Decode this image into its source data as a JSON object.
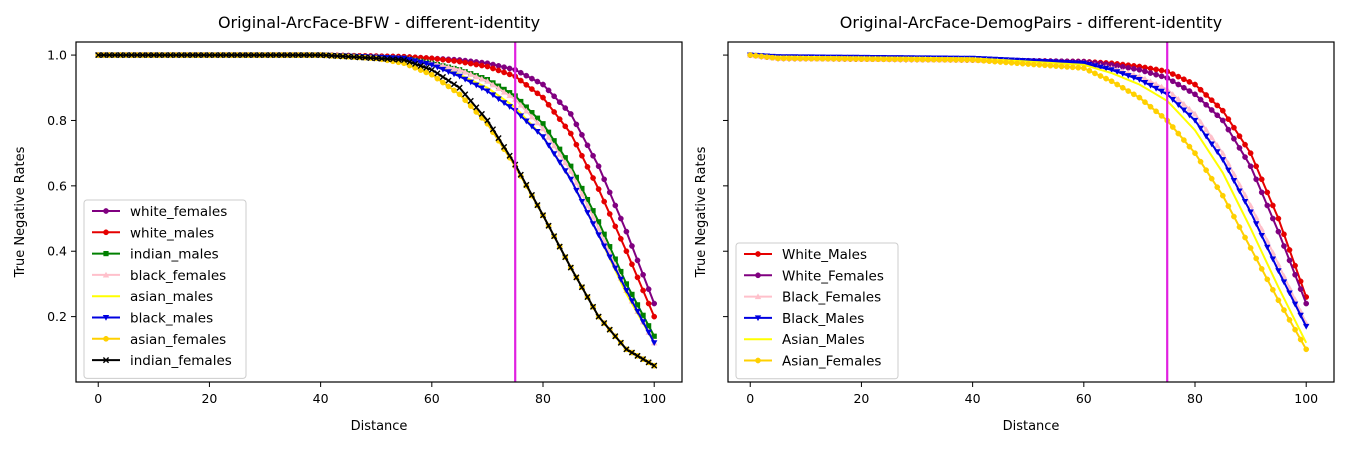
{
  "figure": {
    "charts": [
      {
        "title": "Original-ArcFace-BFW - different-identity",
        "xlabel": "Distance",
        "ylabel": "True Negative Rates",
        "show_yticklabels": true,
        "vline_x": 75,
        "vline_color": "#e020e0",
        "legend_loc": "lower-left",
        "legend_series": [
          "white_females",
          "white_males",
          "indian_males",
          "black_females",
          "asian_males",
          "black_males",
          "asian_females",
          "indian_females"
        ]
      },
      {
        "title": "Original-ArcFace-DemogPairs - different-identity",
        "xlabel": "Distance",
        "ylabel": "True Negative Rates",
        "show_yticklabels": false,
        "vline_x": 75,
        "vline_color": "#e020e0",
        "legend_loc": "lower-left",
        "legend_series": [
          "White_Males",
          "White_Females",
          "Black_Females",
          "Black_Males",
          "Asian_Males",
          "Asian_Females"
        ]
      }
    ]
  },
  "chart_data": [
    {
      "type": "line",
      "title": "Original-ArcFace-BFW - different-identity",
      "xlabel": "Distance",
      "ylabel": "True Negative Rates",
      "xlim": [
        -4,
        105
      ],
      "ylim": [
        0.0,
        1.04
      ],
      "xticks": [
        0,
        20,
        40,
        60,
        80,
        100
      ],
      "yticks": [
        0.2,
        0.4,
        0.6,
        0.8,
        1.0
      ],
      "xtick_labels": [
        "0",
        "20",
        "40",
        "60",
        "80",
        "100"
      ],
      "ytick_labels": [
        "0.2",
        "0.4",
        "0.6",
        "0.8",
        "1.0"
      ],
      "grid": false,
      "legend": "lower-left",
      "vline": {
        "x": 75,
        "color": "#e020e0"
      },
      "series": [
        {
          "name": "white_females",
          "color": "#800080",
          "marker": "circle",
          "points": [
            [
              0,
              1.0
            ],
            [
              40,
              1.0
            ],
            [
              55,
              0.995
            ],
            [
              60,
              0.99
            ],
            [
              65,
              0.985
            ],
            [
              70,
              0.975
            ],
            [
              75,
              0.955
            ],
            [
              80,
              0.91
            ],
            [
              85,
              0.82
            ],
            [
              90,
              0.66
            ],
            [
              95,
              0.46
            ],
            [
              100,
              0.24
            ]
          ]
        },
        {
          "name": "white_males",
          "color": "#e50000",
          "marker": "circle",
          "points": [
            [
              0,
              1.0
            ],
            [
              40,
              1.0
            ],
            [
              55,
              0.995
            ],
            [
              60,
              0.99
            ],
            [
              65,
              0.98
            ],
            [
              70,
              0.965
            ],
            [
              75,
              0.935
            ],
            [
              80,
              0.87
            ],
            [
              85,
              0.76
            ],
            [
              90,
              0.59
            ],
            [
              95,
              0.4
            ],
            [
              100,
              0.2
            ]
          ]
        },
        {
          "name": "indian_males",
          "color": "#008000",
          "marker": "square",
          "points": [
            [
              0,
              1.0
            ],
            [
              40,
              1.0
            ],
            [
              55,
              0.99
            ],
            [
              60,
              0.975
            ],
            [
              65,
              0.955
            ],
            [
              70,
              0.925
            ],
            [
              75,
              0.875
            ],
            [
              80,
              0.79
            ],
            [
              85,
              0.66
            ],
            [
              90,
              0.49
            ],
            [
              95,
              0.3
            ],
            [
              100,
              0.14
            ]
          ]
        },
        {
          "name": "black_females",
          "color": "#ffc0cb",
          "marker": "triangle-up",
          "points": [
            [
              0,
              1.0
            ],
            [
              40,
              1.0
            ],
            [
              55,
              0.99
            ],
            [
              60,
              0.975
            ],
            [
              65,
              0.955
            ],
            [
              70,
              0.92
            ],
            [
              75,
              0.865
            ],
            [
              80,
              0.775
            ],
            [
              85,
              0.645
            ],
            [
              90,
              0.47
            ],
            [
              95,
              0.28
            ],
            [
              100,
              0.12
            ]
          ]
        },
        {
          "name": "asian_males",
          "color": "#ffff00",
          "marker": "none",
          "points": [
            [
              0,
              1.0
            ],
            [
              40,
              1.0
            ],
            [
              55,
              0.99
            ],
            [
              60,
              0.97
            ],
            [
              65,
              0.94
            ],
            [
              70,
              0.9
            ],
            [
              75,
              0.84
            ],
            [
              80,
              0.75
            ],
            [
              85,
              0.62
            ],
            [
              90,
              0.45
            ],
            [
              95,
              0.27
            ],
            [
              100,
              0.12
            ]
          ]
        },
        {
          "name": "black_males",
          "color": "#0000e0",
          "marker": "triangle-down",
          "points": [
            [
              0,
              1.0
            ],
            [
              40,
              1.0
            ],
            [
              55,
              0.99
            ],
            [
              60,
              0.97
            ],
            [
              65,
              0.935
            ],
            [
              70,
              0.89
            ],
            [
              75,
              0.83
            ],
            [
              80,
              0.75
            ],
            [
              85,
              0.62
            ],
            [
              90,
              0.45
            ],
            [
              95,
              0.28
            ],
            [
              100,
              0.12
            ]
          ]
        },
        {
          "name": "asian_females",
          "color": "#ffd000",
          "marker": "circle",
          "points": [
            [
              0,
              1.0
            ],
            [
              40,
              1.0
            ],
            [
              50,
              0.99
            ],
            [
              55,
              0.975
            ],
            [
              60,
              0.94
            ],
            [
              65,
              0.88
            ],
            [
              70,
              0.79
            ],
            [
              75,
              0.66
            ],
            [
              80,
              0.51
            ],
            [
              85,
              0.35
            ],
            [
              90,
              0.2
            ],
            [
              95,
              0.1
            ],
            [
              100,
              0.05
            ]
          ]
        },
        {
          "name": "indian_females",
          "color": "#000000",
          "marker": "x",
          "points": [
            [
              0,
              1.0
            ],
            [
              40,
              1.0
            ],
            [
              50,
              0.99
            ],
            [
              55,
              0.985
            ],
            [
              60,
              0.955
            ],
            [
              65,
              0.9
            ],
            [
              70,
              0.8
            ],
            [
              75,
              0.665
            ],
            [
              80,
              0.51
            ],
            [
              85,
              0.35
            ],
            [
              90,
              0.2
            ],
            [
              95,
              0.1
            ],
            [
              100,
              0.05
            ]
          ]
        }
      ]
    },
    {
      "type": "line",
      "title": "Original-ArcFace-DemogPairs - different-identity",
      "xlabel": "Distance",
      "ylabel": "True Negative Rates",
      "xlim": [
        -4,
        105
      ],
      "ylim": [
        0.0,
        1.04
      ],
      "xticks": [
        0,
        20,
        40,
        60,
        80,
        100
      ],
      "yticks": [
        0.2,
        0.4,
        0.6,
        0.8,
        1.0
      ],
      "xtick_labels": [
        "0",
        "20",
        "40",
        "60",
        "80",
        "100"
      ],
      "ytick_labels": [
        "",
        "",
        "",
        "",
        ""
      ],
      "grid": false,
      "legend": "lower-left",
      "vline": {
        "x": 75,
        "color": "#e020e0"
      },
      "series": [
        {
          "name": "White_Males",
          "color": "#e50000",
          "marker": "circle",
          "points": [
            [
              0,
              1.0
            ],
            [
              5,
              0.99
            ],
            [
              40,
              0.985
            ],
            [
              60,
              0.98
            ],
            [
              65,
              0.975
            ],
            [
              70,
              0.965
            ],
            [
              75,
              0.95
            ],
            [
              80,
              0.91
            ],
            [
              85,
              0.83
            ],
            [
              90,
              0.7
            ],
            [
              95,
              0.5
            ],
            [
              100,
              0.26
            ]
          ]
        },
        {
          "name": "White_Females",
          "color": "#800080",
          "marker": "circle",
          "points": [
            [
              0,
              1.0
            ],
            [
              5,
              0.99
            ],
            [
              40,
              0.985
            ],
            [
              60,
              0.98
            ],
            [
              65,
              0.97
            ],
            [
              70,
              0.955
            ],
            [
              75,
              0.93
            ],
            [
              80,
              0.88
            ],
            [
              85,
              0.8
            ],
            [
              90,
              0.66
            ],
            [
              95,
              0.46
            ],
            [
              100,
              0.24
            ]
          ]
        },
        {
          "name": "Black_Females",
          "color": "#ffc0cb",
          "marker": "triangle-up",
          "points": [
            [
              0,
              1.0
            ],
            [
              5,
              0.99
            ],
            [
              40,
              0.985
            ],
            [
              60,
              0.975
            ],
            [
              65,
              0.96
            ],
            [
              70,
              0.935
            ],
            [
              75,
              0.895
            ],
            [
              80,
              0.82
            ],
            [
              85,
              0.7
            ],
            [
              90,
              0.54
            ],
            [
              95,
              0.36
            ],
            [
              100,
              0.18
            ]
          ]
        },
        {
          "name": "Black_Males",
          "color": "#0000e0",
          "marker": "triangle-down",
          "points": [
            [
              0,
              1.0
            ],
            [
              5,
              0.995
            ],
            [
              40,
              0.99
            ],
            [
              60,
              0.975
            ],
            [
              65,
              0.955
            ],
            [
              70,
              0.925
            ],
            [
              75,
              0.88
            ],
            [
              80,
              0.8
            ],
            [
              85,
              0.68
            ],
            [
              90,
              0.52
            ],
            [
              95,
              0.34
            ],
            [
              100,
              0.17
            ]
          ]
        },
        {
          "name": "Asian_Males",
          "color": "#ffff00",
          "marker": "none",
          "points": [
            [
              0,
              1.0
            ],
            [
              5,
              0.995
            ],
            [
              40,
              0.99
            ],
            [
              60,
              0.97
            ],
            [
              65,
              0.945
            ],
            [
              70,
              0.91
            ],
            [
              75,
              0.86
            ],
            [
              80,
              0.77
            ],
            [
              85,
              0.64
            ],
            [
              90,
              0.47
            ],
            [
              95,
              0.29
            ],
            [
              100,
              0.12
            ]
          ]
        },
        {
          "name": "Asian_Females",
          "color": "#ffd000",
          "marker": "circle",
          "points": [
            [
              0,
              1.0
            ],
            [
              5,
              0.99
            ],
            [
              40,
              0.985
            ],
            [
              60,
              0.96
            ],
            [
              65,
              0.92
            ],
            [
              70,
              0.87
            ],
            [
              75,
              0.8
            ],
            [
              80,
              0.7
            ],
            [
              85,
              0.57
            ],
            [
              90,
              0.41
            ],
            [
              95,
              0.25
            ],
            [
              100,
              0.1
            ]
          ]
        }
      ]
    }
  ]
}
